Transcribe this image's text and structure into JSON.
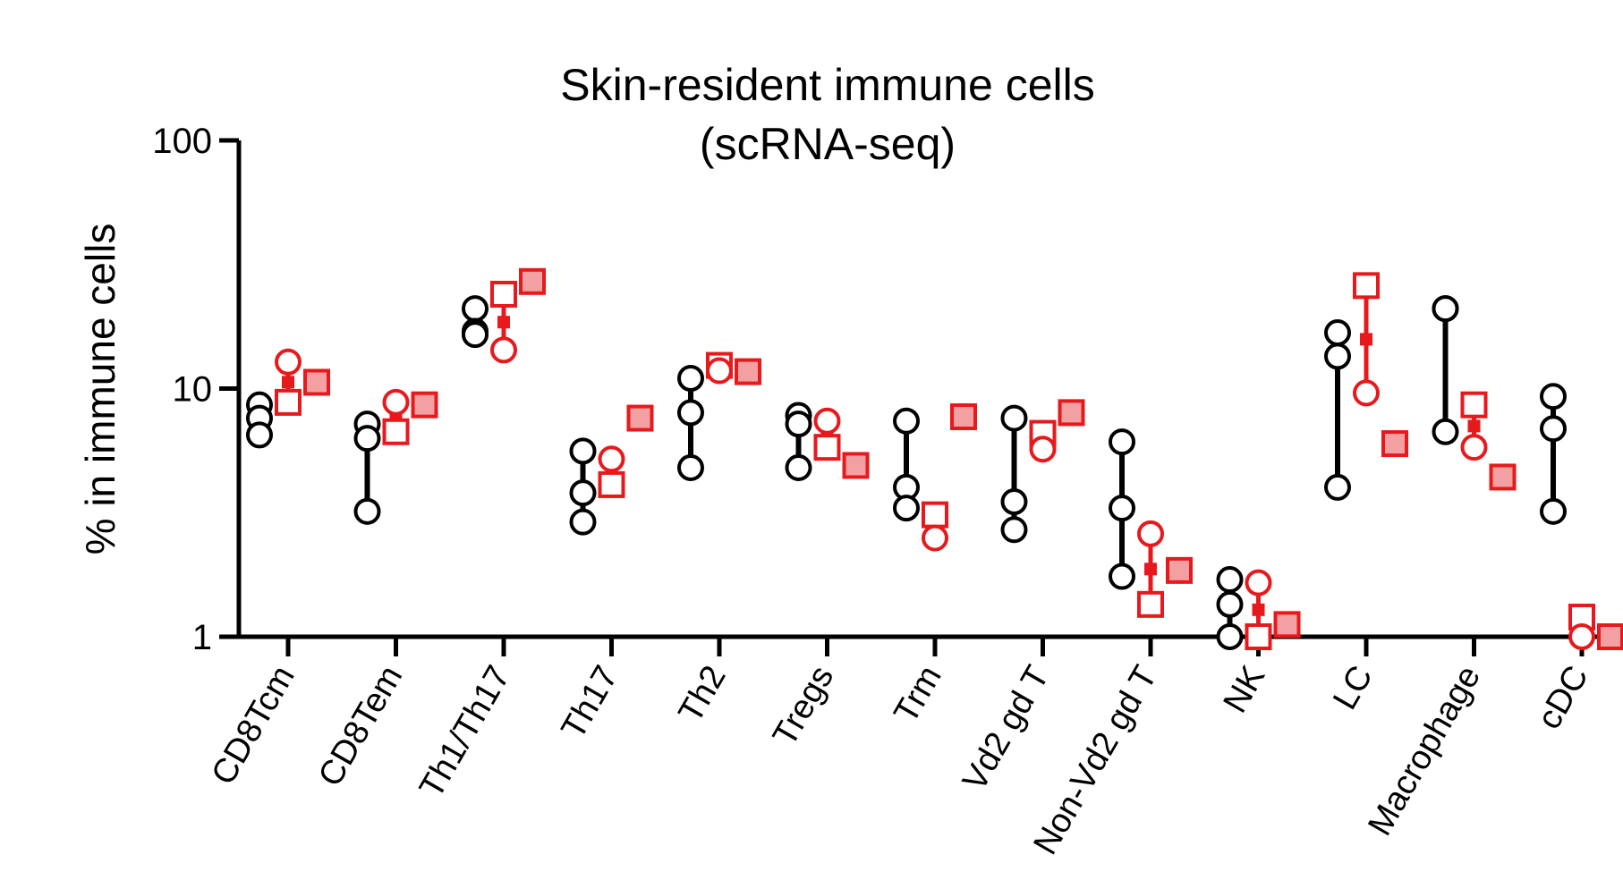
{
  "chart_data": {
    "type": "scatter",
    "title": "Skin-resident immune cells",
    "subtitle": "(scRNA-seq)",
    "ylabel": "% in immune cells",
    "xlabel": "",
    "yscale": "log",
    "ylim": [
      1,
      100
    ],
    "yticks": [
      "1",
      "10",
      "100"
    ],
    "colors": {
      "group1": "#000000",
      "group2": "#e8191c",
      "group3_fill": "#f2a0a2",
      "group3_stroke": "#e8191c"
    },
    "categories": [
      "CD8Tcm",
      "CD8Tem",
      "Th1/Th17",
      "Th17",
      "Th2",
      "Tregs",
      "Trm",
      "Vd2 gd T",
      "Non-Vd2 gd T",
      "NK",
      "LC",
      "Macrophage",
      "cDC"
    ],
    "series": [
      {
        "marker": "open-circle",
        "color": "#000000",
        "values": [
          [
            8.6,
            7.6,
            6.5
          ],
          [
            7.2,
            6.3,
            3.2
          ],
          [
            21,
            17,
            16.5
          ],
          [
            5.6,
            3.8,
            2.9
          ],
          [
            11,
            8,
            4.8
          ],
          [
            7.8,
            7.2,
            4.8
          ],
          [
            7.4,
            4.0,
            3.3
          ],
          [
            7.6,
            3.5,
            2.7
          ],
          [
            6.1,
            3.3,
            1.75
          ],
          [
            1.7,
            1.35,
            1.0
          ],
          [
            16.8,
            13.5,
            4.0
          ],
          [
            21,
            21,
            6.7
          ],
          [
            9.3,
            6.9,
            3.2
          ]
        ]
      },
      {
        "marker": "open-circle",
        "color": "#e8191c",
        "values": [
          12.8,
          8.8,
          14.3,
          5.2,
          11.8,
          7.4,
          2.5,
          5.7,
          2.6,
          1.65,
          9.6,
          5.8,
          1.0
        ]
      },
      {
        "marker": "open-square",
        "color": "#e8191c",
        "values": [
          8.8,
          6.7,
          24,
          4.1,
          12.4,
          5.8,
          3.1,
          6.6,
          1.35,
          1.0,
          26,
          8.6,
          1.2
        ]
      },
      {
        "marker": "filled-square",
        "color": "#e8191c",
        "values": [
          10.6,
          8.6,
          27,
          7.6,
          11.7,
          4.9,
          7.7,
          8.0,
          1.85,
          1.12,
          6.0,
          4.4,
          1.0
        ]
      }
    ]
  }
}
